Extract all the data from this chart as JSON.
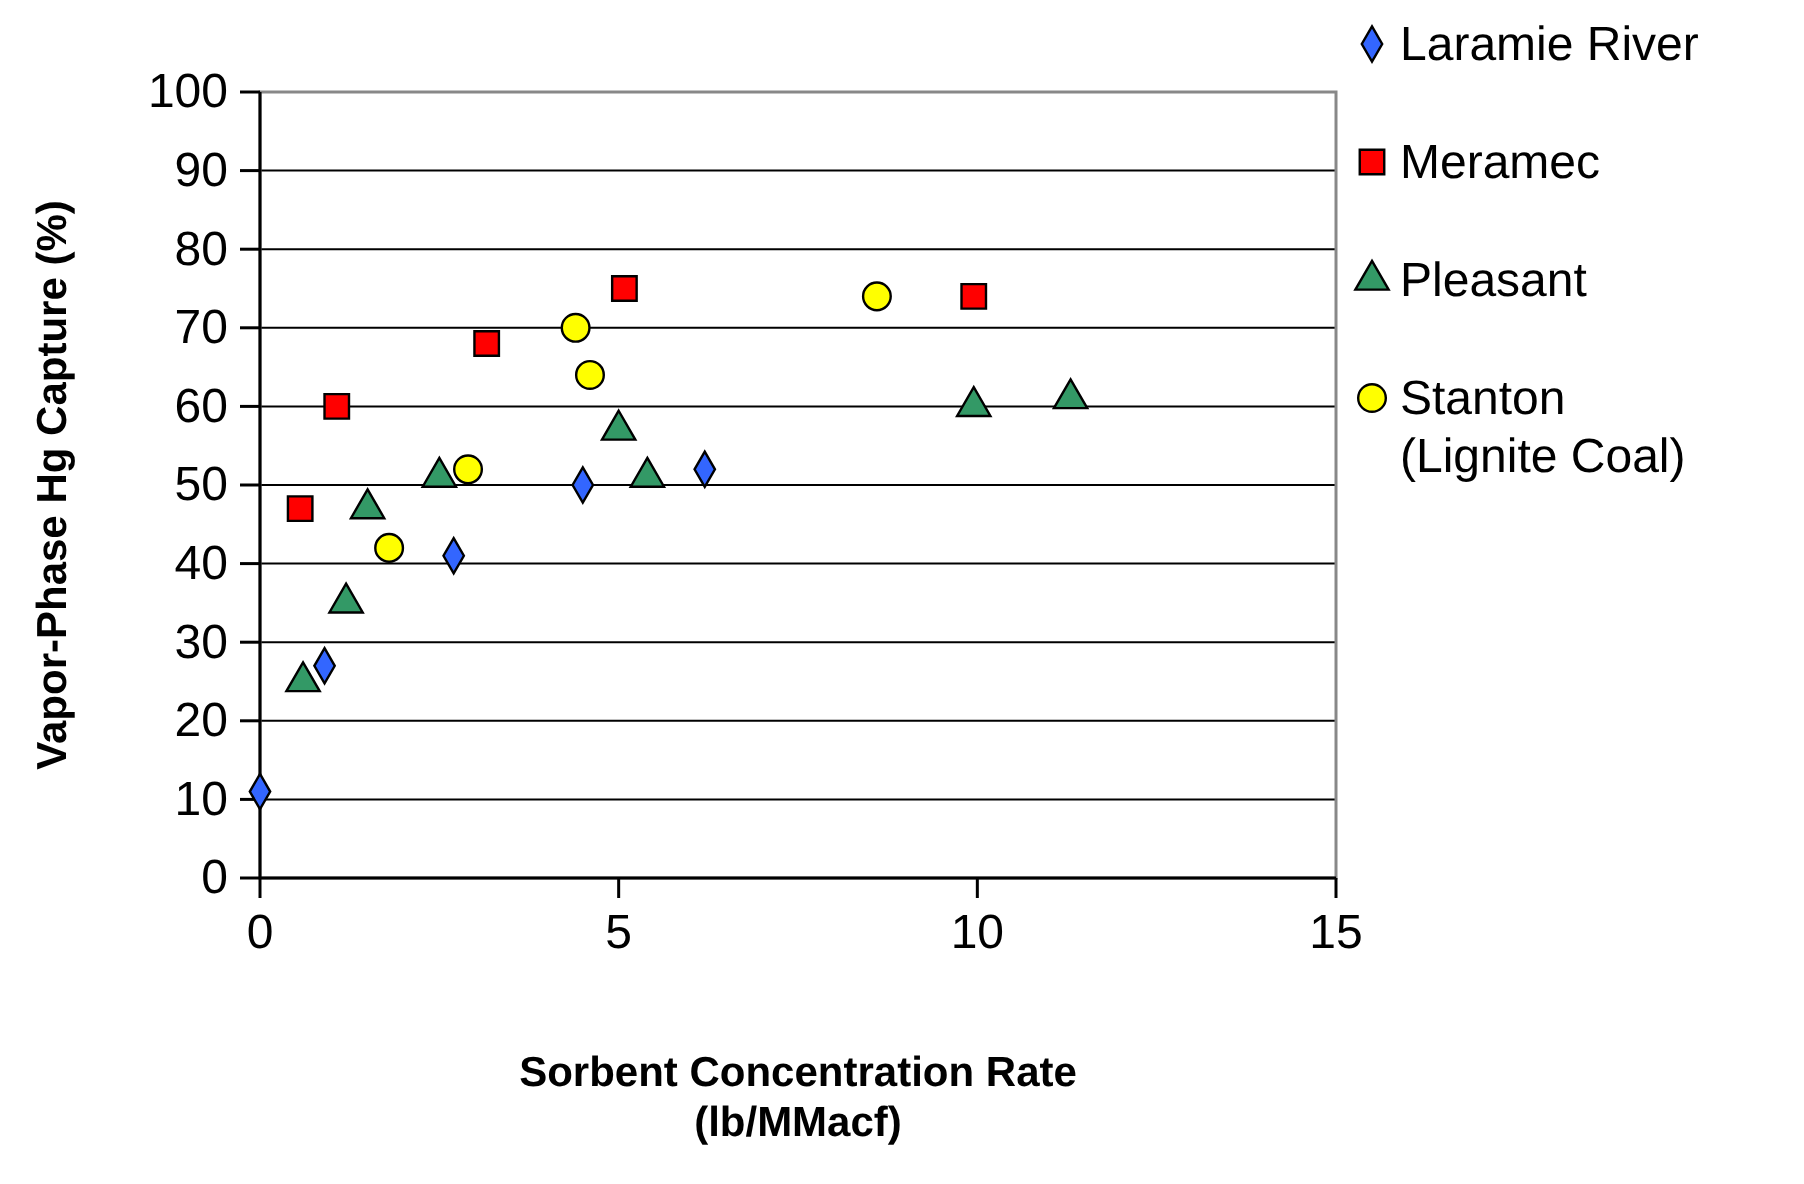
{
  "chart_data": {
    "type": "scatter",
    "xlabel": "Sorbent Concentration Rate\n(lb/MMacf)",
    "ylabel": "Vapor-Phase Hg Capture (%)",
    "xlim": [
      0,
      15
    ],
    "xticks": [
      0,
      5,
      10,
      15
    ],
    "ylim": [
      0,
      100
    ],
    "yticks": [
      0,
      10,
      20,
      30,
      40,
      50,
      60,
      70,
      80,
      90,
      100
    ],
    "grid": "y",
    "legend": "right",
    "series": [
      {
        "name": "Laramie River",
        "color": "#3366ff",
        "marker": "diamond",
        "x": [
          0,
          0.9,
          2.7,
          4.5,
          6.2
        ],
        "values": [
          11,
          27,
          41,
          50,
          52
        ]
      },
      {
        "name": "Meramec",
        "color": "#ff0000",
        "marker": "square",
        "x": [
          0.56,
          1.07,
          3.16,
          5.08,
          9.95
        ],
        "values": [
          47,
          60,
          68,
          75,
          74
        ]
      },
      {
        "name": "Pleasant",
        "color": "#339966",
        "marker": "triangle",
        "x": [
          0.6,
          1.2,
          1.5,
          2.5,
          5.0,
          5.4,
          9.95,
          11.3
        ],
        "values": [
          25,
          35,
          47,
          51,
          57,
          51,
          60,
          61
        ]
      },
      {
        "name": "Stanton\n(Lignite Coal)",
        "color": "#ffff00",
        "marker": "circle",
        "x": [
          1.8,
          2.9,
          4.4,
          4.6,
          8.6
        ],
        "values": [
          42,
          52,
          70,
          64,
          74
        ]
      }
    ]
  }
}
